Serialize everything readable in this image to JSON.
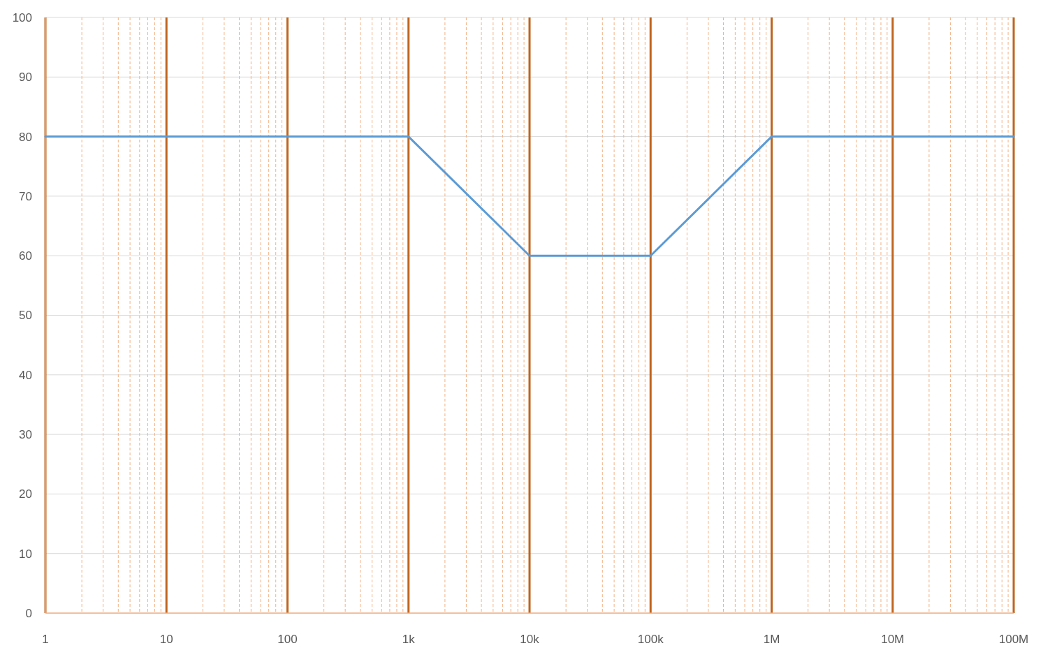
{
  "chart_data": {
    "type": "line",
    "log": "x",
    "x": [
      1,
      1000,
      10000,
      100000,
      1000000,
      100000000
    ],
    "series": [
      {
        "color": "#5b9bd5",
        "values": [
          80,
          80,
          60,
          60,
          80,
          80
        ]
      }
    ],
    "xlim": [
      1,
      100000000
    ],
    "xticks": [
      1,
      {
        "value": 2,
        "label": null
      },
      {
        "value": 3,
        "label": null
      },
      {
        "value": 4,
        "label": null
      },
      {
        "value": 5,
        "label": null
      },
      {
        "value": 6,
        "label": null
      },
      {
        "value": 7,
        "label": null
      },
      {
        "value": 8,
        "label": null
      },
      {
        "value": 9,
        "label": null
      },
      10,
      {
        "value": 20,
        "label": null
      },
      {
        "value": 30,
        "label": null
      },
      {
        "value": 40,
        "label": null
      },
      {
        "value": 50,
        "label": null
      },
      {
        "value": 60,
        "label": null
      },
      {
        "value": 70,
        "label": null
      },
      {
        "value": 80,
        "label": null
      },
      {
        "value": 90,
        "label": null
      },
      100,
      {
        "value": 200,
        "label": null
      },
      {
        "value": 300,
        "label": null
      },
      {
        "value": 400,
        "label": null
      },
      {
        "value": 500,
        "label": null
      },
      {
        "value": 600,
        "label": null
      },
      {
        "value": 700,
        "label": null
      },
      {
        "value": 800,
        "label": null
      },
      {
        "value": 900,
        "label": null
      },
      {
        "value": 1000,
        "label": "1k"
      },
      {
        "value": 2000,
        "label": null
      },
      {
        "value": 3000,
        "label": null
      },
      {
        "value": 4000,
        "label": null
      },
      {
        "value": 5000,
        "label": null
      },
      {
        "value": 6000,
        "label": null
      },
      {
        "value": 7000,
        "label": null
      },
      {
        "value": 8000,
        "label": null
      },
      {
        "value": 9000,
        "label": null
      },
      {
        "value": 10000,
        "label": "10k"
      },
      {
        "value": 20000,
        "label": null
      },
      {
        "value": 30000,
        "label": null
      },
      {
        "value": 40000,
        "label": null
      },
      {
        "value": 50000,
        "label": null
      },
      {
        "value": 60000,
        "label": null
      },
      {
        "value": 70000,
        "label": null
      },
      {
        "value": 80000,
        "label": null
      },
      {
        "value": 90000,
        "label": null
      },
      {
        "value": 100000,
        "label": "100k"
      },
      {
        "value": 200000,
        "label": null
      },
      {
        "value": 300000,
        "label": null
      },
      {
        "value": 400000,
        "label": null
      },
      {
        "value": 500000,
        "label": null
      },
      {
        "value": 600000,
        "label": null
      },
      {
        "value": 700000,
        "label": null
      },
      {
        "value": 800000,
        "label": null
      },
      {
        "value": 900000,
        "label": null
      },
      {
        "value": 1000000,
        "label": "1M"
      },
      {
        "value": 2000000,
        "label": null
      },
      {
        "value": 3000000,
        "label": null
      },
      {
        "value": 4000000,
        "label": null
      },
      {
        "value": 5000000,
        "label": null
      },
      {
        "value": 6000000,
        "label": null
      },
      {
        "value": 7000000,
        "label": null
      },
      {
        "value": 8000000,
        "label": null
      },
      {
        "value": 9000000,
        "label": null
      },
      {
        "value": 10000000,
        "label": "10M"
      },
      {
        "value": 20000000,
        "label": null
      },
      {
        "value": 30000000,
        "label": null
      },
      {
        "value": 40000000,
        "label": null
      },
      {
        "value": 50000000,
        "label": null
      },
      {
        "value": 60000000,
        "label": null
      },
      {
        "value": 70000000,
        "label": null
      },
      {
        "value": 80000000,
        "label": null
      },
      {
        "value": 90000000,
        "label": null
      },
      {
        "value": 100000000,
        "label": "100M"
      }
    ],
    "ylim": [
      0,
      100
    ],
    "yticks": [
      0,
      10,
      20,
      30,
      40,
      50,
      60,
      70,
      80,
      90,
      100
    ],
    "grid": true,
    "marker": "none",
    "line_style": "solid"
  }
}
